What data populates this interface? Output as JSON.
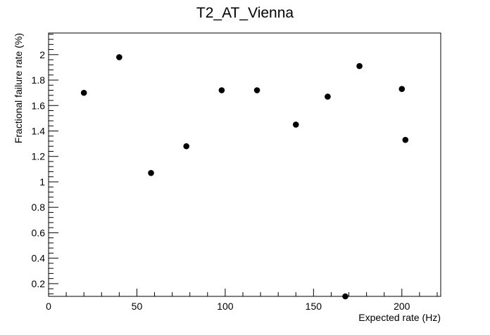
{
  "chart_data": {
    "type": "scatter",
    "title": "T2_AT_Vienna",
    "xlabel": "Expected rate (Hz)",
    "ylabel": "Fractional failure rate (%)",
    "xlim": [
      0,
      222
    ],
    "ylim": [
      0.1,
      2.17
    ],
    "x_ticks": [
      0,
      50,
      100,
      150,
      200
    ],
    "y_ticks": [
      0.2,
      0.4,
      0.6,
      0.8,
      1,
      1.2,
      1.4,
      1.6,
      1.8,
      2
    ],
    "grid": false,
    "legend": "none",
    "marker_color": "#000000",
    "points": [
      {
        "x": 20,
        "y": 1.7
      },
      {
        "x": 40,
        "y": 1.98
      },
      {
        "x": 58,
        "y": 1.07
      },
      {
        "x": 78,
        "y": 1.28
      },
      {
        "x": 98,
        "y": 1.72
      },
      {
        "x": 118,
        "y": 1.72
      },
      {
        "x": 140,
        "y": 1.45
      },
      {
        "x": 158,
        "y": 1.67
      },
      {
        "x": 168,
        "y": 0.1
      },
      {
        "x": 176,
        "y": 1.91
      },
      {
        "x": 200,
        "y": 1.73
      },
      {
        "x": 202,
        "y": 1.33
      }
    ]
  }
}
